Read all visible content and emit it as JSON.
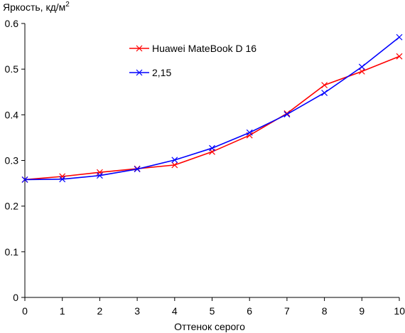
{
  "chart_data": {
    "type": "line",
    "xlabel": "Оттенок серого",
    "ylabel": "Яркость, кд/м",
    "ylabel_sup": "2",
    "xlim": [
      0,
      10
    ],
    "ylim": [
      0,
      0.6
    ],
    "x_ticks": [
      "0",
      "1",
      "2",
      "3",
      "4",
      "5",
      "6",
      "7",
      "8",
      "9",
      "10"
    ],
    "y_ticks": [
      "0",
      "0.1",
      "0.2",
      "0.3",
      "0.4",
      "0.5",
      "0.6"
    ],
    "grid": false,
    "legend_position": "top-center",
    "x": [
      0,
      1,
      2,
      3,
      4,
      5,
      6,
      7,
      8,
      9,
      10
    ],
    "series": [
      {
        "name": "Huawei MateBook D 16",
        "color": "#ff0000",
        "marker": "x",
        "values": [
          0.258,
          0.265,
          0.274,
          0.282,
          0.29,
          0.319,
          0.355,
          0.403,
          0.465,
          0.495,
          0.528
        ]
      },
      {
        "name": "2,15",
        "color": "#0000ff",
        "marker": "x",
        "values": [
          0.258,
          0.259,
          0.267,
          0.281,
          0.301,
          0.327,
          0.361,
          0.401,
          0.448,
          0.505,
          0.57
        ]
      }
    ]
  }
}
